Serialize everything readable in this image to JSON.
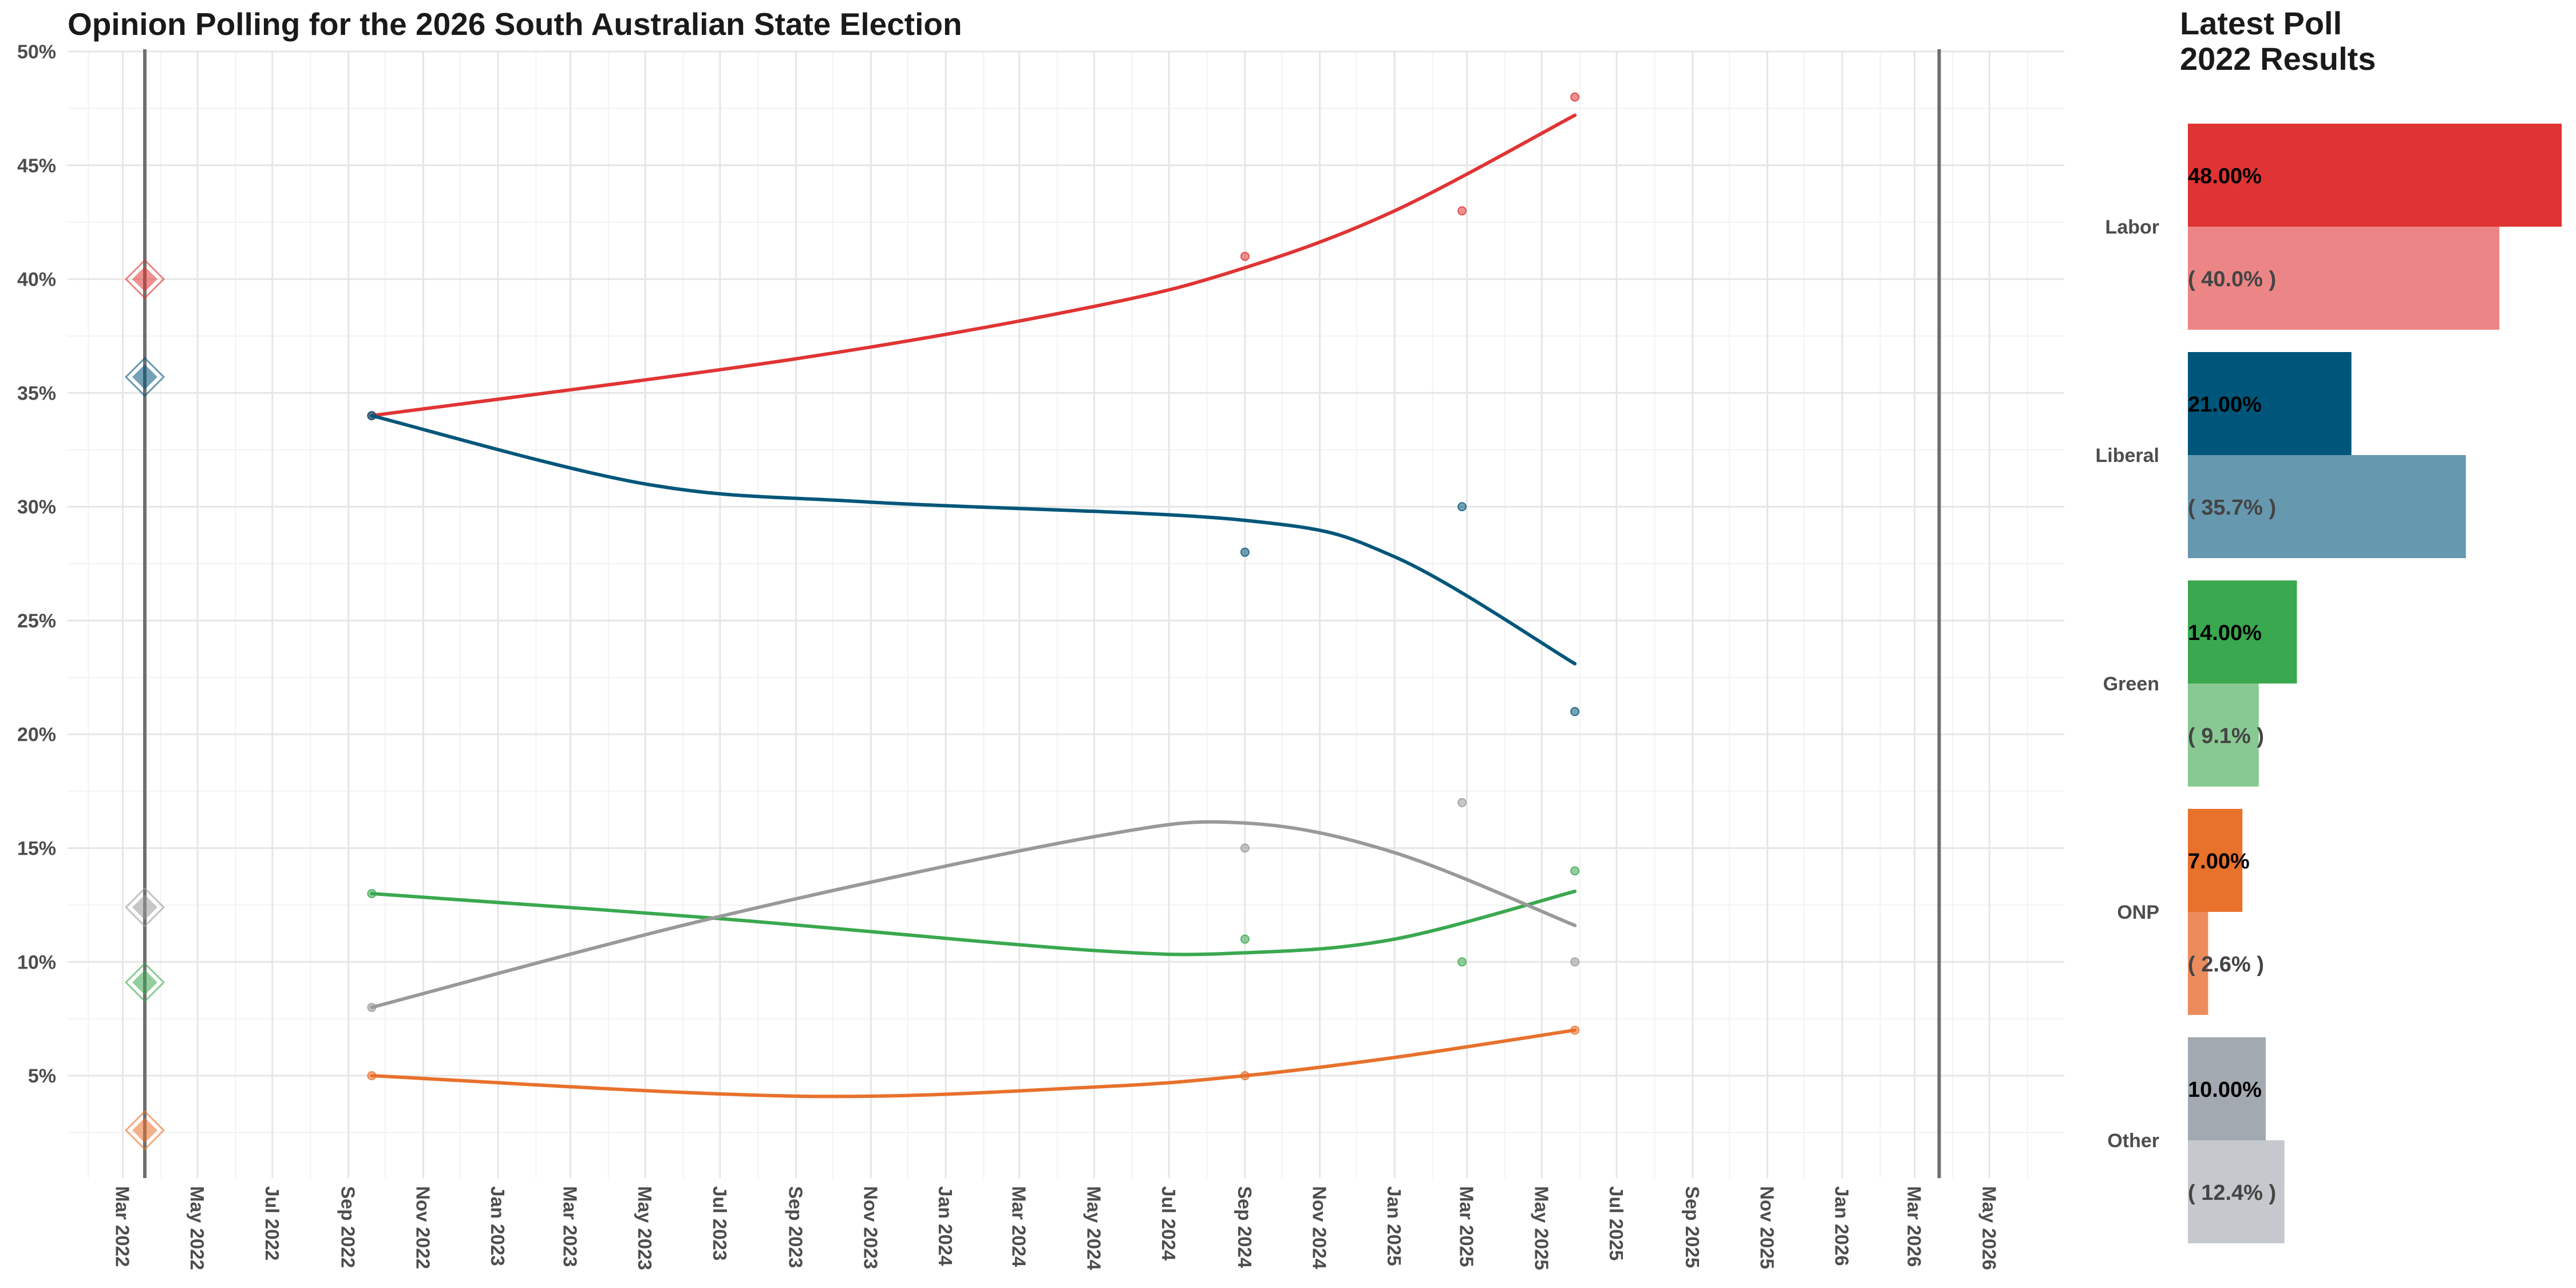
{
  "chart_data": [
    {
      "type": "line",
      "title": "Opinion Polling for the 2026 South Australian State Election",
      "xlabel": "",
      "ylabel": "",
      "x_ticks": [
        "Mar 2022",
        "May 2022",
        "Jul 2022",
        "Sep 2022",
        "Nov 2022",
        "Jan 2023",
        "Mar 2023",
        "May 2023",
        "Jul 2023",
        "Sep 2023",
        "Nov 2023",
        "Jan 2024",
        "Mar 2024",
        "May 2024",
        "Jul 2024",
        "Sep 2024",
        "Nov 2024",
        "Jan 2025",
        "Mar 2025",
        "May 2025",
        "Jul 2025",
        "Sep 2025",
        "Nov 2025",
        "Jan 2026",
        "Mar 2026",
        "May 2026"
      ],
      "y_ticks": [
        "5%",
        "10%",
        "15%",
        "20%",
        "25%",
        "30%",
        "35%",
        "40%",
        "45%",
        "50%"
      ],
      "ylim": [
        0.5,
        50
      ],
      "grid": true,
      "vertical_lines": [
        "2022-03-19",
        "2026-03-21"
      ],
      "series": [
        {
          "name": "Labor",
          "color": "#E03434",
          "points": [
            [
              "2022-09-20",
              34
            ],
            [
              "2024-09-01",
              41
            ],
            [
              "2025-02-25",
              43
            ],
            [
              "2025-05-28",
              48
            ]
          ],
          "trend": [
            [
              "2022-09-20",
              34.0
            ],
            [
              "2023-09-01",
              36.5
            ],
            [
              "2024-05-01",
              38.8
            ],
            [
              "2024-09-01",
              40.5
            ],
            [
              "2025-01-01",
              43.0
            ],
            [
              "2025-05-28",
              47.2
            ]
          ],
          "result_2022": 40.0
        },
        {
          "name": "Liberal",
          "color": "#00567A",
          "points": [
            [
              "2022-09-20",
              34
            ],
            [
              "2024-09-01",
              28
            ],
            [
              "2025-02-25",
              30
            ],
            [
              "2025-05-28",
              21
            ]
          ],
          "trend": [
            [
              "2022-09-20",
              34.0
            ],
            [
              "2023-05-01",
              31.0
            ],
            [
              "2023-11-01",
              30.2
            ],
            [
              "2024-09-01",
              29.4
            ],
            [
              "2025-01-01",
              27.8
            ],
            [
              "2025-05-28",
              23.1
            ]
          ],
          "result_2022": 35.7
        },
        {
          "name": "Green",
          "color": "#3AA84F",
          "points": [
            [
              "2022-09-20",
              13
            ],
            [
              "2024-09-01",
              11
            ],
            [
              "2025-02-25",
              10
            ],
            [
              "2025-05-28",
              14
            ]
          ],
          "trend": [
            [
              "2022-09-20",
              13.0
            ],
            [
              "2023-07-01",
              11.9
            ],
            [
              "2024-05-01",
              10.5
            ],
            [
              "2024-09-01",
              10.4
            ],
            [
              "2025-01-01",
              11.0
            ],
            [
              "2025-05-28",
              13.1
            ]
          ],
          "result_2022": 9.1
        },
        {
          "name": "ONP",
          "color": "#E8712C",
          "points": [
            [
              "2022-09-20",
              5
            ],
            [
              "2024-09-01",
              5
            ],
            [
              "2025-02-25",
              null
            ],
            [
              "2025-05-28",
              7
            ]
          ],
          "trend": [
            [
              "2022-09-20",
              5.0
            ],
            [
              "2023-09-01",
              4.1
            ],
            [
              "2024-05-01",
              4.5
            ],
            [
              "2024-09-01",
              5.0
            ],
            [
              "2025-01-01",
              5.8
            ],
            [
              "2025-05-28",
              7.0
            ]
          ],
          "result_2022": 2.6
        },
        {
          "name": "Other",
          "color": "#999999",
          "points": [
            [
              "2022-09-20",
              8
            ],
            [
              "2024-09-01",
              15
            ],
            [
              "2025-02-25",
              17
            ],
            [
              "2025-05-28",
              10
            ]
          ],
          "trend": [
            [
              "2022-09-20",
              8.0
            ],
            [
              "2023-07-01",
              12.0
            ],
            [
              "2024-05-01",
              15.5
            ],
            [
              "2024-09-01",
              16.1
            ],
            [
              "2025-01-01",
              14.8
            ],
            [
              "2025-05-28",
              11.6
            ]
          ],
          "result_2022": 12.4
        }
      ]
    },
    {
      "type": "bar",
      "title": "Latest Poll\n2022 Results",
      "title_lines": [
        "Latest Poll",
        "2022 Results"
      ],
      "categories": [
        "Labor",
        "Liberal",
        "Green",
        "ONP",
        "Other"
      ],
      "series": [
        {
          "values": [
            48.0,
            21.0,
            14.0,
            7.0,
            10.0
          ],
          "labels": [
            "48.00%",
            "21.00%",
            "14.00%",
            "7.00%",
            "10.00%"
          ],
          "colors": [
            "#E03434",
            "#00567A",
            "#3AA84F",
            "#E8712C",
            "#A3A9B1"
          ]
        },
        {
          "values": [
            40.0,
            35.7,
            9.1,
            2.6,
            12.4
          ],
          "labels": [
            "( 40.0% )",
            "( 35.7% )",
            "( 9.1% )",
            "( 2.6% )",
            "( 12.4% )"
          ],
          "colors": [
            "#EC8585",
            "#6699B0",
            "#88C993",
            "#EC8C5C",
            "#C5C9CD"
          ]
        }
      ]
    }
  ]
}
